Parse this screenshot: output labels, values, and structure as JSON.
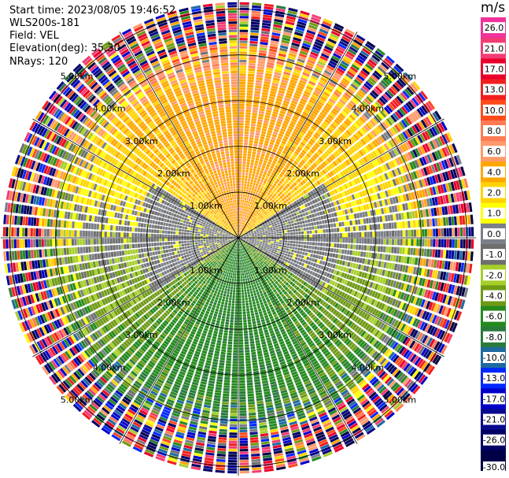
{
  "header": {
    "start_time": "Start time: 2023/08/05 19:46:52",
    "instrument": "WLS200s-181",
    "field": "Field: VEL",
    "elevation": "Elevation(deg): 35.30",
    "nrays": "NRays: 120"
  },
  "colorbar": {
    "unit": "m/s",
    "ticks": [
      "26.0",
      "21.0",
      "17.0",
      "13.0",
      "10.0",
      "8.0",
      "6.0",
      "4.0",
      "2.0",
      "1.0",
      "0.0",
      "-1.0",
      "-2.0",
      "-4.0",
      "-6.0",
      "-8.0",
      "-10.0",
      "-13.0",
      "-17.0",
      "-21.0",
      "-26.0",
      "-30.0"
    ],
    "colors": [
      "#f0329a",
      "#f23c74",
      "#e8002a",
      "#f21e1e",
      "#ff4a1a",
      "#ff7a52",
      "#ff9a6a",
      "#ffa600",
      "#ffd300",
      "#ffff00",
      "#7b7f88",
      "#6e6e6e",
      "#a6cf2a",
      "#6e9a16",
      "#248a1e",
      "#2a7a3a",
      "#1e6aa0",
      "#0028ff",
      "#0000c8",
      "#0a0a8c",
      "#000064",
      "#000046"
    ]
  },
  "chart_data": {
    "type": "polar-ppi",
    "field": "VEL",
    "units": "m/s",
    "nrays": 120,
    "range_ring_labels": [
      "1.00km",
      "2.00km",
      "3.00km",
      "4.00km",
      "5.00km"
    ],
    "range_rings_km": [
      1,
      2,
      3,
      4,
      5
    ],
    "max_range_km": 5.2,
    "colormap_min": -30,
    "colormap_max": 26,
    "azimuth_spokes_deg": [
      0,
      30,
      60,
      90,
      120,
      150,
      180,
      210,
      240,
      270,
      300,
      330
    ],
    "dominant_patterns": [
      {
        "sector": "north",
        "range_km": [
          1,
          3.5
        ],
        "velocity_ms": [
          2,
          6
        ]
      },
      {
        "sector": "south",
        "range_km": [
          1,
          3.5
        ],
        "velocity_ms": [
          -8,
          -2
        ]
      },
      {
        "sector": "east-west",
        "range_km": [
          0,
          2
        ],
        "velocity_ms": [
          -1,
          1
        ]
      },
      {
        "sector": "all",
        "range_km": [
          4,
          5.2
        ],
        "velocity_ms": [
          -30,
          26
        ]
      }
    ]
  }
}
